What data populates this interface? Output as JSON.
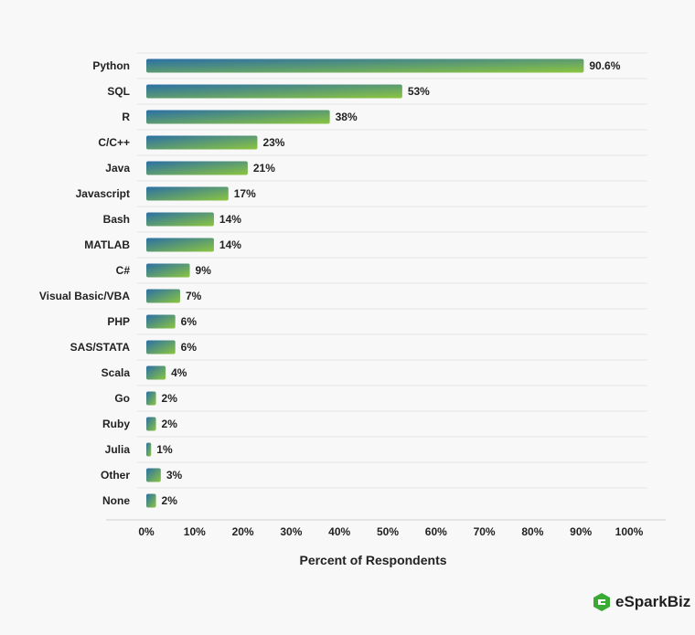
{
  "chart_data": {
    "type": "bar",
    "orientation": "horizontal",
    "categories": [
      "Python",
      "SQL",
      "R",
      "C/C++",
      "Java",
      "Javascript",
      "Bash",
      "MATLAB",
      "C#",
      "Visual Basic/VBA",
      "PHP",
      "SAS/STATA",
      "Scala",
      "Go",
      "Ruby",
      "Julia",
      "Other",
      "None"
    ],
    "values": [
      90.6,
      53,
      38,
      23,
      21,
      17,
      14,
      14,
      9,
      7,
      6,
      6,
      4,
      2,
      2,
      1,
      3,
      2
    ],
    "value_labels": [
      "90.6%",
      "53%",
      "38%",
      "23%",
      "21%",
      "17%",
      "14%",
      "14%",
      "9%",
      "7%",
      "6%",
      "6%",
      "4%",
      "2%",
      "2%",
      "1%",
      "3%",
      "2%"
    ],
    "xlabel": "Percent of Respondents",
    "ylabel": "",
    "xlim": [
      0,
      100
    ],
    "xticks": [
      0,
      10,
      20,
      30,
      40,
      50,
      60,
      70,
      80,
      90,
      100
    ],
    "xtick_labels": [
      "0%",
      "10%",
      "20%",
      "30%",
      "40%",
      "50%",
      "60%",
      "70%",
      "80%",
      "90%",
      "100%"
    ],
    "grid": "horizontal lines between categories",
    "bar_gradient": [
      "#2b6fa6",
      "#8cc63f"
    ]
  },
  "brand": {
    "name": "eSparkBiz",
    "icon": "esparkbiz-logo-icon",
    "color": "#3aaa35"
  }
}
